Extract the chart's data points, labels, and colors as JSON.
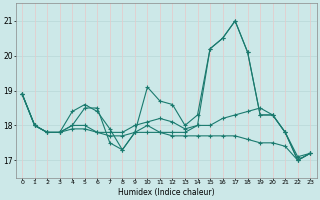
{
  "xlabel": "Humidex (Indice chaleur)",
  "x_ticks": [
    0,
    1,
    2,
    3,
    4,
    5,
    6,
    7,
    8,
    9,
    10,
    11,
    12,
    13,
    14,
    15,
    16,
    17,
    18,
    19,
    20,
    21,
    22,
    23
  ],
  "ylim": [
    16.5,
    21.5
  ],
  "yticks": [
    17,
    18,
    19,
    20,
    21
  ],
  "bg_color": "#cce8e8",
  "grid_color_h": "#b8d8d8",
  "grid_color_v": "#e8c8c8",
  "line_color": "#1a7a6e",
  "series": [
    [
      18.9,
      18.0,
      17.8,
      17.8,
      18.0,
      18.5,
      18.5,
      17.5,
      17.3,
      17.8,
      19.1,
      18.7,
      18.6,
      18.0,
      18.3,
      20.2,
      20.5,
      21.0,
      20.1,
      18.3,
      18.3,
      17.8,
      17.0,
      17.2
    ],
    [
      18.9,
      18.0,
      17.8,
      17.8,
      18.0,
      18.0,
      17.8,
      17.8,
      17.8,
      18.0,
      18.1,
      18.2,
      18.1,
      17.9,
      18.0,
      18.0,
      18.2,
      18.3,
      18.4,
      18.5,
      18.3,
      17.8,
      17.1,
      17.2
    ],
    [
      18.9,
      18.0,
      17.8,
      17.8,
      17.9,
      17.9,
      17.8,
      17.7,
      17.7,
      17.8,
      17.8,
      17.8,
      17.7,
      17.7,
      17.7,
      17.7,
      17.7,
      17.7,
      17.6,
      17.5,
      17.5,
      17.4,
      17.0,
      17.2
    ],
    [
      18.9,
      18.0,
      17.8,
      17.8,
      18.4,
      18.6,
      18.4,
      17.9,
      17.3,
      17.8,
      18.0,
      17.8,
      17.8,
      17.8,
      18.0,
      20.2,
      20.5,
      21.0,
      20.1,
      18.3,
      18.3,
      17.8,
      17.0,
      17.2
    ]
  ]
}
